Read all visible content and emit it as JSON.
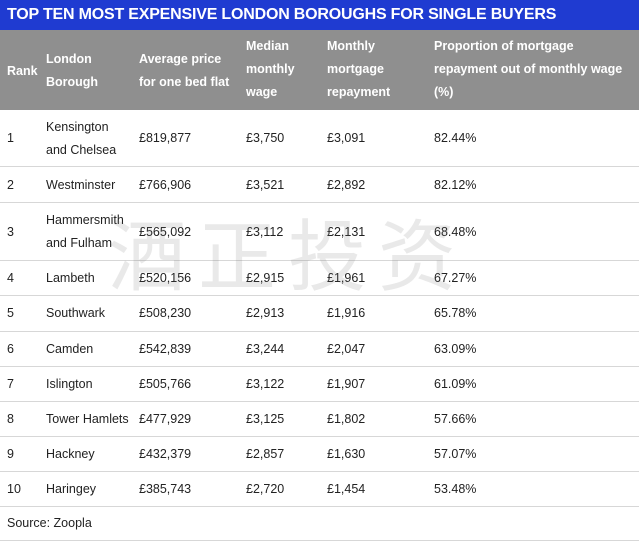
{
  "title": "TOP TEN MOST EXPENSIVE LONDON BOROUGHS FOR SINGLE BUYERS",
  "headers": {
    "rank": "Rank",
    "borough": [
      "London",
      "Borough"
    ],
    "price": [
      "Average price",
      "for one bed flat"
    ],
    "wage": [
      "Median",
      "monthly",
      "wage"
    ],
    "mortgage": [
      "Monthly",
      "mortgage",
      "repayment"
    ],
    "proportion": [
      "Proportion of mortgage",
      "repayment out of monthly wage",
      "(%)"
    ]
  },
  "rows": [
    {
      "rank": "1",
      "borough": [
        "Kensington",
        "and Chelsea"
      ],
      "price": "£819,877",
      "wage": "£3,750",
      "mortgage": "£3,091",
      "proportion": "82.44%"
    },
    {
      "rank": "2",
      "borough": [
        "Westminster"
      ],
      "price": "£766,906",
      "wage": "£3,521",
      "mortgage": "£2,892",
      "proportion": "82.12%"
    },
    {
      "rank": "3",
      "borough": [
        "Hammersmith",
        "and Fulham"
      ],
      "price": "£565,092",
      "wage": "£3,112",
      "mortgage": "£2,131",
      "proportion": "68.48%"
    },
    {
      "rank": "4",
      "borough": [
        "Lambeth"
      ],
      "price": "£520,156",
      "wage": "£2,915",
      "mortgage": "£1,961",
      "proportion": "67.27%"
    },
    {
      "rank": "5",
      "borough": [
        "Southwark"
      ],
      "price": "£508,230",
      "wage": "£2,913",
      "mortgage": "£1,916",
      "proportion": "65.78%"
    },
    {
      "rank": "6",
      "borough": [
        "Camden"
      ],
      "price": "£542,839",
      "wage": "£3,244",
      "mortgage": "£2,047",
      "proportion": "63.09%"
    },
    {
      "rank": "7",
      "borough": [
        "Islington"
      ],
      "price": "£505,766",
      "wage": "£3,122",
      "mortgage": "£1,907",
      "proportion": "61.09%"
    },
    {
      "rank": "8",
      "borough": [
        "Tower Hamlets"
      ],
      "price": "£477,929",
      "wage": "£3,125",
      "mortgage": "£1,802",
      "proportion": "57.66%"
    },
    {
      "rank": "9",
      "borough": [
        "Hackney"
      ],
      "price": "£432,379",
      "wage": "£2,857",
      "mortgage": "£1,630",
      "proportion": "57.07%"
    },
    {
      "rank": "10",
      "borough": [
        "Haringey"
      ],
      "price": "£385,743",
      "wage": "£2,720",
      "mortgage": "£1,454",
      "proportion": "53.48%"
    }
  ],
  "source": "Source: Zoopla",
  "watermark": "酒正投资"
}
